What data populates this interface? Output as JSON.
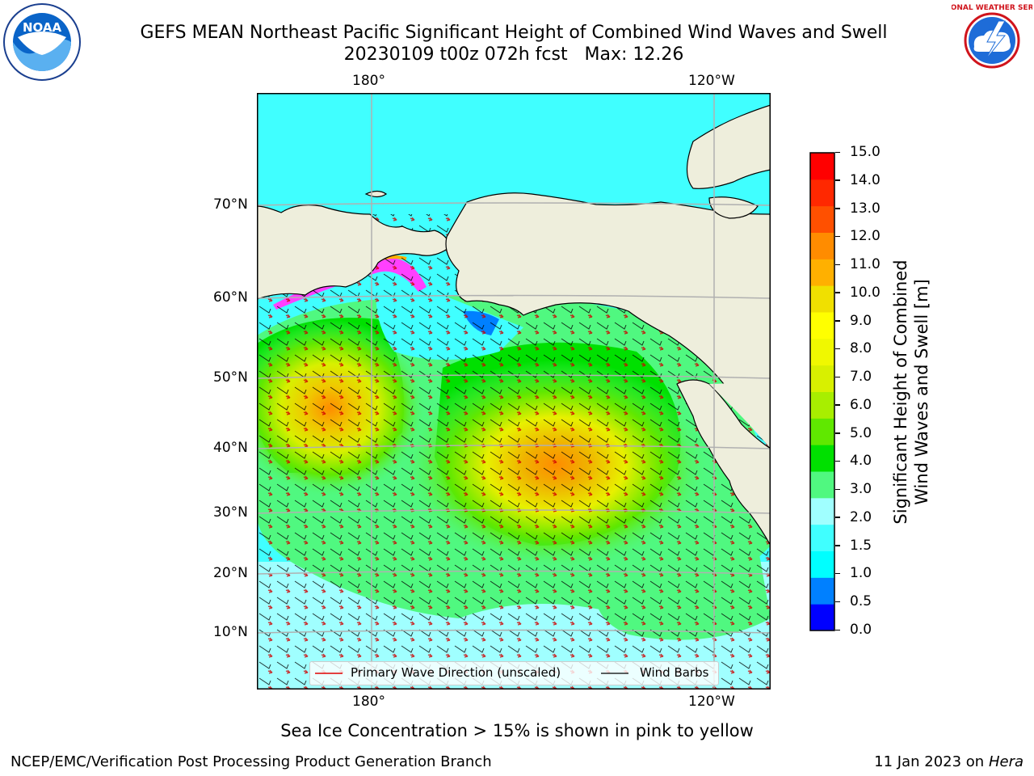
{
  "title": {
    "line1": "GEFS MEAN Northeast Pacific Significant Height of Combined Wind Waves and Swell",
    "line2": "20230109 t00z 072h fcst   Max: 12.26"
  },
  "logos": {
    "noaa": {
      "text": "NOAA",
      "icon": "noaa-logo-icon"
    },
    "nws": {
      "text": "NATIONAL WEATHER SERVICE",
      "icon": "nws-logo-icon"
    }
  },
  "map": {
    "lon_labels": [
      "180°",
      "120°W"
    ],
    "lat_labels": [
      "70°N",
      "60°N",
      "50°N",
      "40°N",
      "30°N",
      "20°N",
      "10°N"
    ],
    "colors": {
      "ocean_low": "#00ffff",
      "land": "#eeeedc",
      "grid": "#b0b0b0",
      "wave_arrow": "#e00000",
      "wind_barb": "#000000"
    }
  },
  "legend": {
    "wave_label": "Primary Wave Direction (unscaled)",
    "wind_label": "Wind Barbs"
  },
  "colorbar": {
    "label_line1": "Significant Height of Combined",
    "label_line2": "Wind Waves and Swell [m]",
    "ticks": [
      "15.0",
      "14.0",
      "13.0",
      "12.0",
      "11.0",
      "10.0",
      "9.0",
      "8.0",
      "7.0",
      "6.0",
      "5.0",
      "4.0",
      "3.0",
      "2.0",
      "1.5",
      "1.0",
      "0.5",
      "0.0"
    ],
    "colors": [
      "#0000ff",
      "#0080ff",
      "#00ffff",
      "#40ffff",
      "#a0ffff",
      "#50f880",
      "#00e000",
      "#60e800",
      "#a8ee00",
      "#d8f000",
      "#f0f800",
      "#ffff00",
      "#f0e000",
      "#ffb000",
      "#ff8c00",
      "#ff5000",
      "#ff2800",
      "#ff0000"
    ]
  },
  "caption": "Sea Ice Concentration > 15% is shown in pink to yellow",
  "footer": {
    "left": "NCEP/EMC/Verification Post Processing Product Generation Branch",
    "right_date": "11 Jan 2023 on ",
    "right_host": "Hera"
  }
}
